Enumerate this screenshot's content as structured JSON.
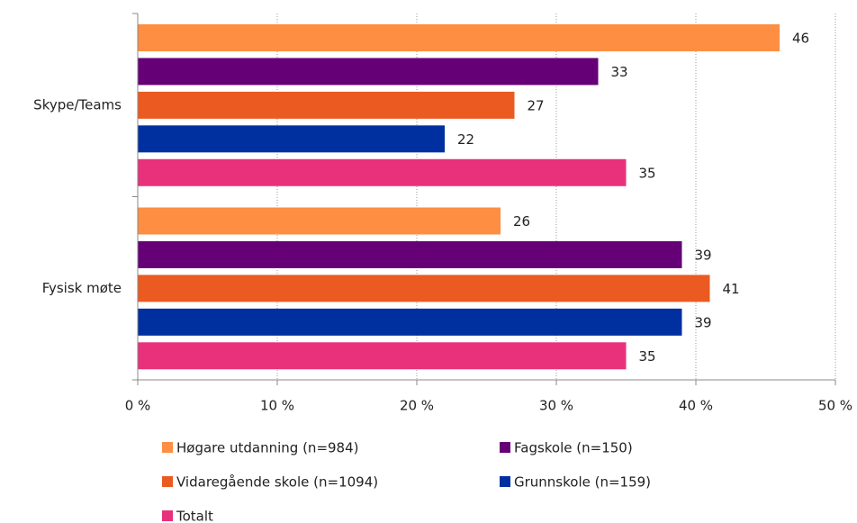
{
  "chart_data": {
    "type": "barh",
    "categories": [
      "Skype/Teams",
      "Fysisk møte"
    ],
    "series": [
      {
        "name": "Høgare utdanning (n=984)",
        "color": "#fd8e42",
        "values": [
          46,
          26
        ]
      },
      {
        "name": "Fagskole (n=150)",
        "color": "#660077",
        "values": [
          33,
          39
        ]
      },
      {
        "name": "Vidaregående skole (n=1094)",
        "color": "#eb5a21",
        "values": [
          27,
          41
        ]
      },
      {
        "name": "Grunnskole (n=159)",
        "color": "#0030a0",
        "values": [
          22,
          39
        ]
      },
      {
        "name": "Totalt",
        "color": "#e8317a",
        "values": [
          35,
          35
        ]
      }
    ],
    "xlim": [
      0,
      50
    ],
    "xticks": [
      {
        "value": 0,
        "label": "0 %"
      },
      {
        "value": 10,
        "label": "10 %"
      },
      {
        "value": 20,
        "label": "20 %"
      },
      {
        "value": 30,
        "label": "30 %"
      },
      {
        "value": 40,
        "label": "40 %"
      },
      {
        "value": 50,
        "label": "50 %"
      }
    ],
    "grid": true
  }
}
